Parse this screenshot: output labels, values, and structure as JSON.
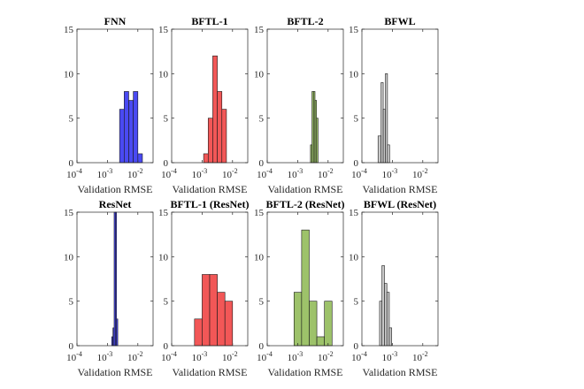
{
  "chart_data": [
    {
      "type": "histogram",
      "title": "FNN",
      "xlabel": "Validation RMSE",
      "xscale": "log",
      "xlim_exp": [
        -4,
        -1.5
      ],
      "xticks": [
        {
          "base": "10",
          "exp": "-4"
        },
        {
          "base": "10",
          "exp": "-3"
        },
        {
          "base": "10",
          "exp": "-2"
        }
      ],
      "ylim": [
        0,
        15
      ],
      "yticks": [
        "0",
        "5",
        "10",
        "15"
      ],
      "color": "#4a4af2",
      "bin_edges_exp": [
        -2.6,
        -2.45,
        -2.3,
        -2.15,
        -2.0,
        -1.85
      ],
      "counts": [
        6,
        8,
        7,
        8,
        1
      ]
    },
    {
      "type": "histogram",
      "title": "BFTL-1",
      "xlabel": "Validation RMSE",
      "xscale": "log",
      "xlim_exp": [
        -4,
        -1.5
      ],
      "xticks": [
        {
          "base": "10",
          "exp": "-4"
        },
        {
          "base": "10",
          "exp": "-3"
        },
        {
          "base": "10",
          "exp": "-2"
        }
      ],
      "ylim": [
        0,
        15
      ],
      "yticks": [
        "0",
        "5",
        "10",
        "15"
      ],
      "color": "#f25757",
      "bin_edges_exp": [
        -2.95,
        -2.8,
        -2.65,
        -2.5,
        -2.35,
        -2.2
      ],
      "counts": [
        1,
        5,
        12,
        8,
        6
      ]
    },
    {
      "type": "histogram",
      "title": "BFTL-2",
      "xlabel": "Validation RMSE",
      "xscale": "log",
      "xlim_exp": [
        -4,
        -1.5
      ],
      "xticks": [
        {
          "base": "10",
          "exp": "-4"
        },
        {
          "base": "10",
          "exp": "-3"
        },
        {
          "base": "10",
          "exp": "-2"
        }
      ],
      "ylim": [
        0,
        15
      ],
      "yticks": [
        "0",
        "5",
        "10",
        "15"
      ],
      "color": "#9dc26a",
      "bin_edges_exp": [
        -2.58,
        -2.53,
        -2.48,
        -2.43,
        -2.38,
        -2.33
      ],
      "counts": [
        2,
        8,
        8,
        7,
        5
      ]
    },
    {
      "type": "histogram",
      "title": "BFWL",
      "xlabel": "Validation RMSE",
      "xscale": "log",
      "xlim_exp": [
        -4,
        -1.5
      ],
      "xticks": [
        {
          "base": "10",
          "exp": "-4"
        },
        {
          "base": "10",
          "exp": "-3"
        },
        {
          "base": "10",
          "exp": "-2"
        }
      ],
      "ylim": [
        0,
        15
      ],
      "yticks": [
        "0",
        "5",
        "10",
        "15"
      ],
      "color": "#c8c8c8",
      "bin_edges_exp": [
        -3.47,
        -3.37,
        -3.3,
        -3.23,
        -3.16,
        -3.09
      ],
      "counts": [
        3,
        9,
        6,
        10,
        2
      ]
    },
    {
      "type": "histogram",
      "title": "ResNet",
      "xlabel": "Validation RMSE",
      "xscale": "log",
      "xlim_exp": [
        -4,
        -1.5
      ],
      "xticks": [
        {
          "base": "10",
          "exp": "-4"
        },
        {
          "base": "10",
          "exp": "-3"
        },
        {
          "base": "10",
          "exp": "-2"
        }
      ],
      "ylim": [
        0,
        15
      ],
      "yticks": [
        "0",
        "5",
        "10",
        "15"
      ],
      "color": "#4a4af2",
      "bin_edges_exp": [
        -2.86,
        -2.82,
        -2.78,
        -2.74,
        -2.7,
        -2.66
      ],
      "counts": [
        1,
        2,
        15,
        15,
        3
      ]
    },
    {
      "type": "histogram",
      "title": "BFTL-1 (ResNet)",
      "xlabel": "Validation RMSE",
      "xscale": "log",
      "xlim_exp": [
        -4,
        -1.5
      ],
      "xticks": [
        {
          "base": "10",
          "exp": "-4"
        },
        {
          "base": "10",
          "exp": "-3"
        },
        {
          "base": "10",
          "exp": "-2"
        }
      ],
      "ylim": [
        0,
        15
      ],
      "yticks": [
        "0",
        "5",
        "10",
        "15"
      ],
      "color": "#f25757",
      "bin_edges_exp": [
        -3.25,
        -3.0,
        -2.75,
        -2.5,
        -2.25,
        -2.0
      ],
      "counts": [
        3,
        8,
        8,
        6,
        5
      ]
    },
    {
      "type": "histogram",
      "title": "BFTL-2 (ResNet)",
      "xlabel": "Validation RMSE",
      "xscale": "log",
      "xlim_exp": [
        -4,
        -1.5
      ],
      "xticks": [
        {
          "base": "10",
          "exp": "-4"
        },
        {
          "base": "10",
          "exp": "-3"
        },
        {
          "base": "10",
          "exp": "-2"
        }
      ],
      "ylim": [
        0,
        15
      ],
      "yticks": [
        "0",
        "5",
        "10",
        "15"
      ],
      "color": "#9dc26a",
      "bin_edges_exp": [
        -3.12,
        -2.87,
        -2.62,
        -2.37,
        -2.12,
        -1.87
      ],
      "counts": [
        6,
        13,
        5,
        1,
        5
      ]
    },
    {
      "type": "histogram",
      "title": "BFWL (ResNet)",
      "xlabel": "Validation RMSE",
      "xscale": "log",
      "xlim_exp": [
        -4,
        -1.5
      ],
      "xticks": [
        {
          "base": "10",
          "exp": "-4"
        },
        {
          "base": "10",
          "exp": "-3"
        },
        {
          "base": "10",
          "exp": "-2"
        }
      ],
      "ylim": [
        0,
        15
      ],
      "yticks": [
        "0",
        "5",
        "10",
        "15"
      ],
      "color": "#c8c8c8",
      "bin_edges_exp": [
        -3.42,
        -3.34,
        -3.26,
        -3.18,
        -3.1,
        -3.02
      ],
      "counts": [
        5,
        9,
        7,
        6,
        2
      ]
    }
  ]
}
